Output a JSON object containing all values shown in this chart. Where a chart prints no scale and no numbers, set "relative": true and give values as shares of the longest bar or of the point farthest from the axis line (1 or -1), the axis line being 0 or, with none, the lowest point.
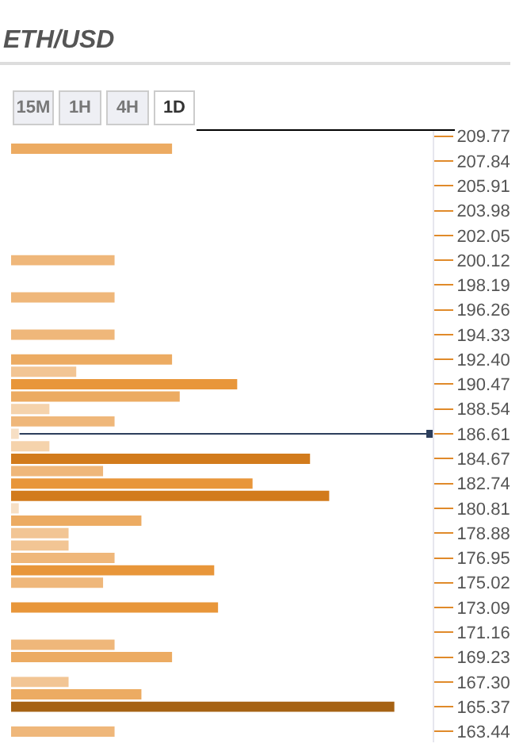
{
  "chart_data": {
    "type": "bar",
    "orientation": "horizontal",
    "relative": true,
    "title": "ETH/USD",
    "annotations": [
      "15M",
      "1H",
      "4H",
      "1D"
    ],
    "x": [
      208.805,
      200.12,
      197.225,
      194.33,
      192.4,
      191.435,
      190.47,
      189.505,
      188.54,
      187.575,
      186.61,
      185.64,
      184.67,
      183.705,
      182.74,
      181.775,
      180.81,
      179.845,
      178.88,
      177.915,
      176.95,
      175.985,
      175.02,
      173.09,
      170.195,
      169.23,
      167.3,
      166.335,
      165.37,
      163.44
    ],
    "values": [
      0.42,
      0.27,
      0.27,
      0.27,
      0.42,
      0.17,
      0.59,
      0.44,
      0.1,
      0.27,
      0.02,
      0.1,
      0.78,
      0.24,
      0.63,
      0.83,
      0.02,
      0.34,
      0.15,
      0.15,
      0.27,
      0.53,
      0.24,
      0.54,
      0.27,
      0.42,
      0.15,
      0.34,
      1,
      0.27
    ],
    "colors": [
      "#ecab62",
      "#efb77a",
      "#efb77a",
      "#efb77a",
      "#ecab62",
      "#f2c594",
      "#e8963a",
      "#ecab62",
      "#f5d3ac",
      "#efb77a",
      "#f7dfc4",
      "#f5d3ac",
      "#d27b1c",
      "#efb77a",
      "#e8963a",
      "#d27b1c",
      "#f7dfc4",
      "#ecab62",
      "#f2c594",
      "#f2c594",
      "#efb77a",
      "#e8963a",
      "#efb77a",
      "#e8963a",
      "#efb77a",
      "#ecab62",
      "#f2c594",
      "#ecab62",
      "#a66214",
      "#efb77a"
    ],
    "ylim": [
      162.6,
      210.25
    ],
    "yticks": [
      209.77,
      207.84,
      205.91,
      203.98,
      202.05,
      200.12,
      198.19,
      196.26,
      194.33,
      {
        "value": 192.4,
        "label": "192.40"
      },
      190.47,
      188.54,
      186.61,
      184.67,
      182.74,
      180.81,
      178.88,
      176.95,
      175.02,
      173.09,
      171.16,
      169.23,
      {
        "value": 167.3,
        "label": "167.30"
      },
      165.37,
      163.44
    ],
    "ref_lines": [
      {
        "axis": "y",
        "value": 186.61,
        "color": "#2c3e5c"
      }
    ]
  }
}
